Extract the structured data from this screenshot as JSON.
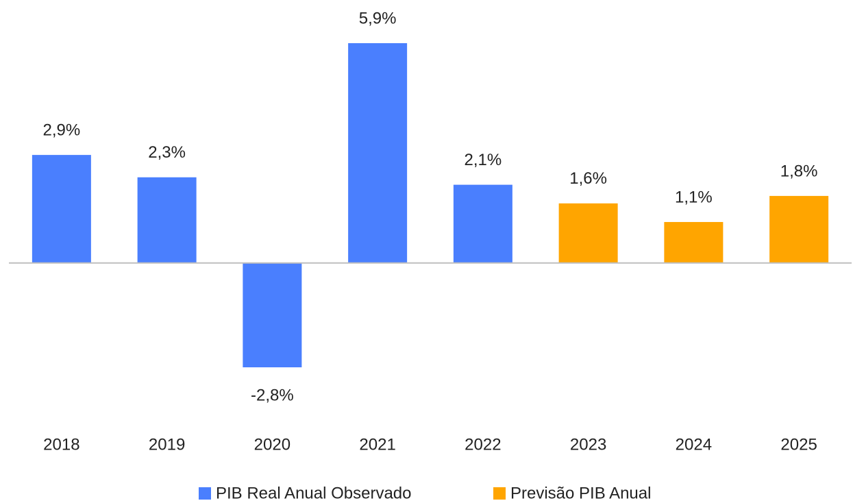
{
  "chart_data": {
    "type": "bar",
    "categories": [
      "2018",
      "2019",
      "2020",
      "2021",
      "2022",
      "2023",
      "2024",
      "2025"
    ],
    "series": [
      {
        "name": "PIB Real Anual Observado",
        "color": "#4a7ffe",
        "values": [
          2.9,
          2.3,
          -2.8,
          5.9,
          2.1,
          null,
          null,
          null
        ],
        "value_labels": [
          "2,9%",
          "2,3%",
          "-2,8%",
          "5,9%",
          "2,1%",
          null,
          null,
          null
        ]
      },
      {
        "name": "Previsão PIB Anual",
        "color": "#ffa500",
        "values": [
          null,
          null,
          null,
          null,
          null,
          1.6,
          1.1,
          1.8
        ],
        "value_labels": [
          null,
          null,
          null,
          null,
          null,
          "1,6%",
          "1,1%",
          "1,8%"
        ]
      }
    ],
    "legend": "bottom"
  }
}
